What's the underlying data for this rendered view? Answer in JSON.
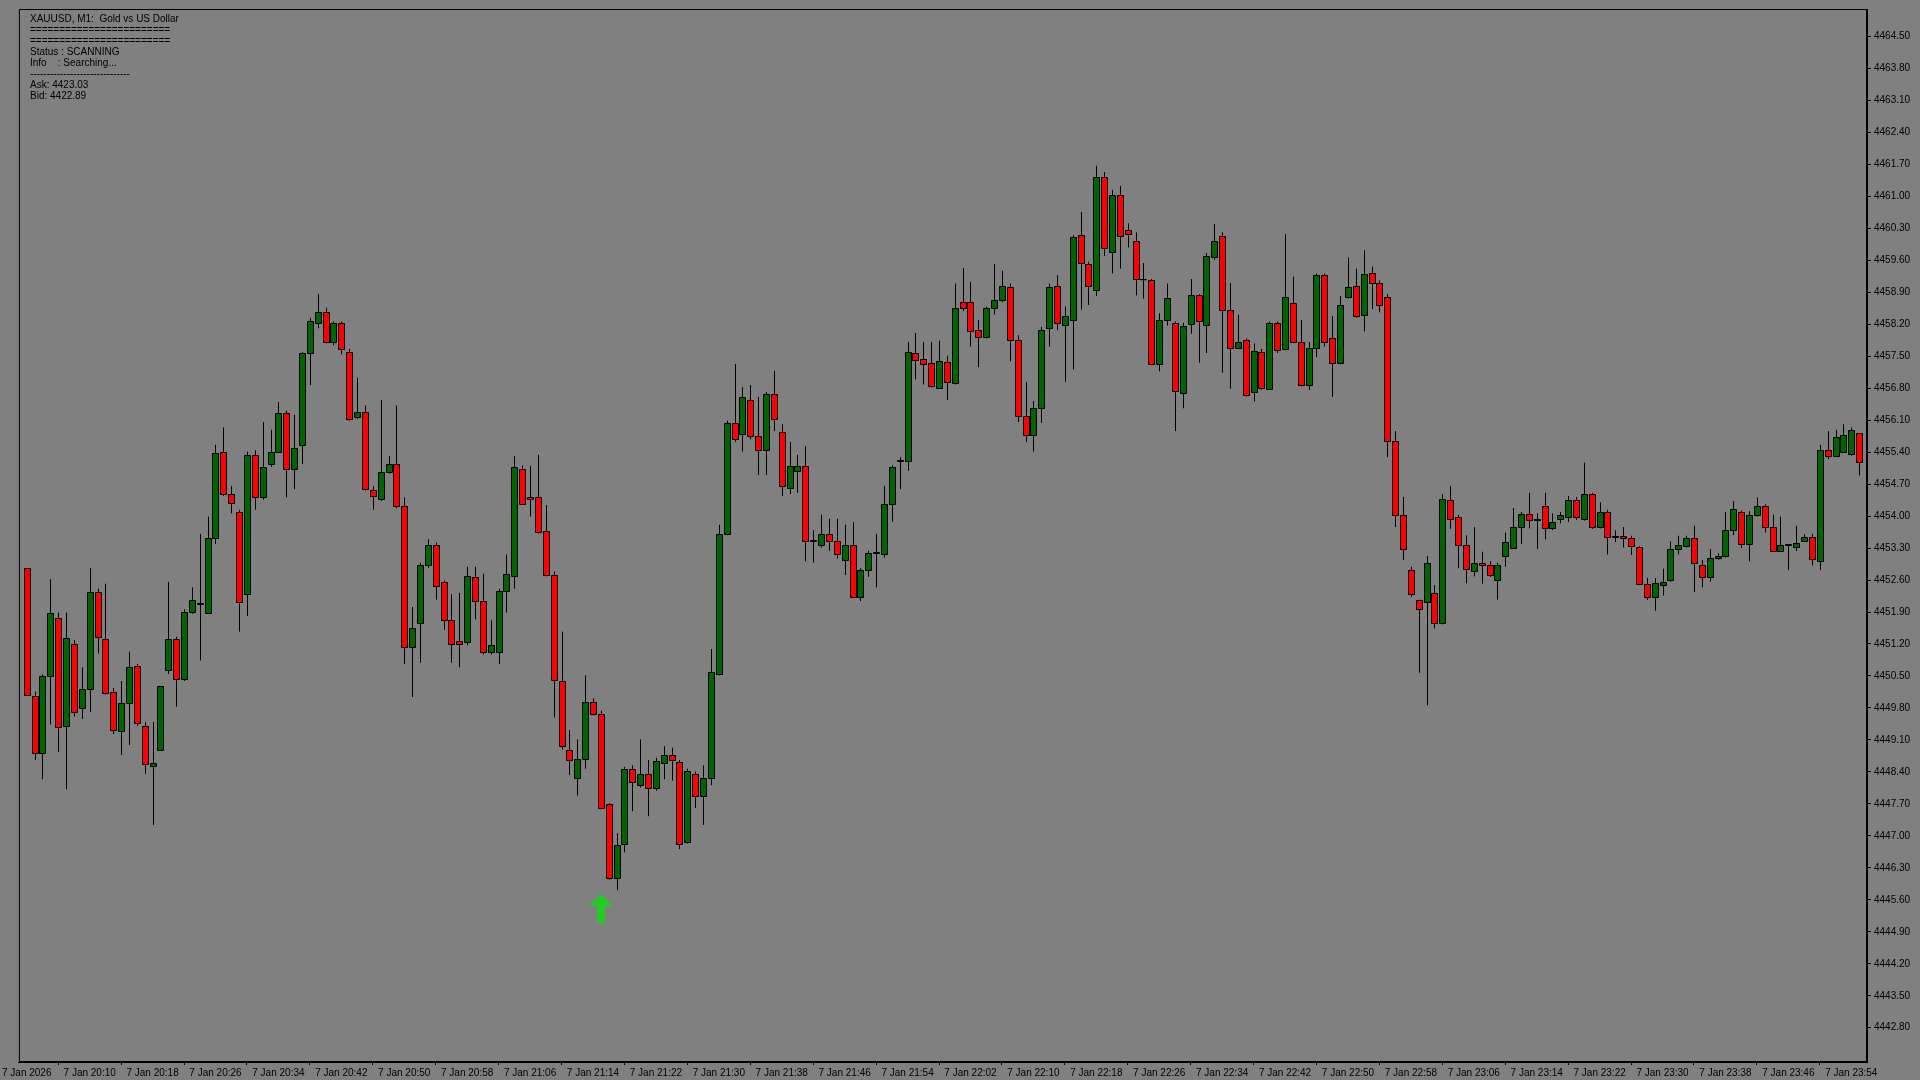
{
  "chart_data": {
    "type": "candlestick",
    "title": "XAUUSD, M1:  Gold vs US Dollar",
    "annotations": [
      "========================",
      "========================",
      "Status : SCANNING",
      "Info    : Searching...",
      "------------------------------",
      "Ask: 4423.03",
      "Bid: 4422.89"
    ],
    "x": [
      "2026-01-07T20:02",
      "2026-01-07T20:03",
      "2026-01-07T20:04",
      "2026-01-07T20:05",
      "2026-01-07T20:06",
      "2026-01-07T20:07",
      "2026-01-07T20:08",
      "2026-01-07T20:09",
      "2026-01-07T20:10",
      "2026-01-07T20:11",
      "2026-01-07T20:12",
      "2026-01-07T20:13",
      "2026-01-07T20:14",
      "2026-01-07T20:15",
      "2026-01-07T20:16",
      "2026-01-07T20:17",
      "2026-01-07T20:18",
      "2026-01-07T20:19",
      "2026-01-07T20:20",
      "2026-01-07T20:21",
      "2026-01-07T20:22",
      "2026-01-07T20:23",
      "2026-01-07T20:24",
      "2026-01-07T20:25",
      "2026-01-07T20:26",
      "2026-01-07T20:27",
      "2026-01-07T20:28",
      "2026-01-07T20:29",
      "2026-01-07T20:30",
      "2026-01-07T20:31",
      "2026-01-07T20:32",
      "2026-01-07T20:33",
      "2026-01-07T20:34",
      "2026-01-07T20:35",
      "2026-01-07T20:36",
      "2026-01-07T20:37",
      "2026-01-07T20:38",
      "2026-01-07T20:39",
      "2026-01-07T20:40",
      "2026-01-07T20:41",
      "2026-01-07T20:42",
      "2026-01-07T20:43",
      "2026-01-07T20:44",
      "2026-01-07T20:45",
      "2026-01-07T20:46",
      "2026-01-07T20:47",
      "2026-01-07T20:48",
      "2026-01-07T20:49",
      "2026-01-07T20:50",
      "2026-01-07T20:51",
      "2026-01-07T20:52",
      "2026-01-07T20:53",
      "2026-01-07T20:54",
      "2026-01-07T20:55",
      "2026-01-07T20:56",
      "2026-01-07T20:57",
      "2026-01-07T20:58",
      "2026-01-07T20:59",
      "2026-01-07T21:00",
      "2026-01-07T21:01",
      "2026-01-07T21:02",
      "2026-01-07T21:03",
      "2026-01-07T21:04",
      "2026-01-07T21:05",
      "2026-01-07T21:06",
      "2026-01-07T21:07",
      "2026-01-07T21:08",
      "2026-01-07T21:09",
      "2026-01-07T21:10",
      "2026-01-07T21:11",
      "2026-01-07T21:12",
      "2026-01-07T21:13",
      "2026-01-07T21:14",
      "2026-01-07T21:15",
      "2026-01-07T21:16",
      "2026-01-07T21:17",
      "2026-01-07T21:18",
      "2026-01-07T21:19",
      "2026-01-07T21:20",
      "2026-01-07T21:21",
      "2026-01-07T21:22",
      "2026-01-07T21:23",
      "2026-01-07T21:24",
      "2026-01-07T21:25",
      "2026-01-07T21:26",
      "2026-01-07T21:27",
      "2026-01-07T21:28",
      "2026-01-07T21:29",
      "2026-01-07T21:30",
      "2026-01-07T21:31",
      "2026-01-07T21:32",
      "2026-01-07T21:33",
      "2026-01-07T21:34",
      "2026-01-07T21:35",
      "2026-01-07T21:36",
      "2026-01-07T21:37",
      "2026-01-07T21:38",
      "2026-01-07T21:39",
      "2026-01-07T21:40",
      "2026-01-07T21:41",
      "2026-01-07T21:42",
      "2026-01-07T21:43",
      "2026-01-07T21:44",
      "2026-01-07T21:45",
      "2026-01-07T21:46",
      "2026-01-07T21:47",
      "2026-01-07T21:48",
      "2026-01-07T21:49",
      "2026-01-07T21:50",
      "2026-01-07T21:51",
      "2026-01-07T21:52",
      "2026-01-07T21:53",
      "2026-01-07T21:54",
      "2026-01-07T21:55",
      "2026-01-07T21:56",
      "2026-01-07T21:57",
      "2026-01-07T21:58",
      "2026-01-07T21:59",
      "2026-01-07T22:00",
      "2026-01-07T22:01",
      "2026-01-07T22:02",
      "2026-01-07T22:03",
      "2026-01-07T22:04",
      "2026-01-07T22:05",
      "2026-01-07T22:06",
      "2026-01-07T22:07",
      "2026-01-07T22:08",
      "2026-01-07T22:09",
      "2026-01-07T22:10",
      "2026-01-07T22:11",
      "2026-01-07T22:12",
      "2026-01-07T22:13",
      "2026-01-07T22:14",
      "2026-01-07T22:15",
      "2026-01-07T22:16",
      "2026-01-07T22:17",
      "2026-01-07T22:18",
      "2026-01-07T22:19",
      "2026-01-07T22:20",
      "2026-01-07T22:21",
      "2026-01-07T22:22",
      "2026-01-07T22:23",
      "2026-01-07T22:24",
      "2026-01-07T22:25",
      "2026-01-07T22:26",
      "2026-01-07T22:27",
      "2026-01-07T22:28",
      "2026-01-07T22:29",
      "2026-01-07T22:30",
      "2026-01-07T22:31",
      "2026-01-07T22:32",
      "2026-01-07T22:33",
      "2026-01-07T22:34",
      "2026-01-07T22:35",
      "2026-01-07T22:36",
      "2026-01-07T22:37",
      "2026-01-07T22:38",
      "2026-01-07T22:39",
      "2026-01-07T22:40",
      "2026-01-07T22:41",
      "2026-01-07T22:42",
      "2026-01-07T22:43",
      "2026-01-07T22:44",
      "2026-01-07T22:45",
      "2026-01-07T22:46",
      "2026-01-07T22:47",
      "2026-01-07T22:48",
      "2026-01-07T22:49",
      "2026-01-07T22:50",
      "2026-01-07T22:51",
      "2026-01-07T22:52",
      "2026-01-07T22:53",
      "2026-01-07T22:54",
      "2026-01-07T22:55",
      "2026-01-07T22:56",
      "2026-01-07T22:57",
      "2026-01-07T22:58",
      "2026-01-07T22:59",
      "2026-01-07T23:00",
      "2026-01-07T23:01",
      "2026-01-07T23:02",
      "2026-01-07T23:03",
      "2026-01-07T23:04",
      "2026-01-07T23:05",
      "2026-01-07T23:06",
      "2026-01-07T23:07",
      "2026-01-07T23:08",
      "2026-01-07T23:09",
      "2026-01-07T23:10",
      "2026-01-07T23:11",
      "2026-01-07T23:12",
      "2026-01-07T23:13",
      "2026-01-07T23:14",
      "2026-01-07T23:15",
      "2026-01-07T23:16",
      "2026-01-07T23:17",
      "2026-01-07T23:18",
      "2026-01-07T23:19",
      "2026-01-07T23:20",
      "2026-01-07T23:21",
      "2026-01-07T23:22",
      "2026-01-07T23:23",
      "2026-01-07T23:24",
      "2026-01-07T23:25",
      "2026-01-07T23:26",
      "2026-01-07T23:27",
      "2026-01-07T23:28",
      "2026-01-07T23:29",
      "2026-01-07T23:30",
      "2026-01-07T23:31",
      "2026-01-07T23:32",
      "2026-01-07T23:33",
      "2026-01-07T23:34",
      "2026-01-07T23:35",
      "2026-01-07T23:36",
      "2026-01-07T23:37",
      "2026-01-07T23:38",
      "2026-01-07T23:39",
      "2026-01-07T23:40",
      "2026-01-07T23:41",
      "2026-01-07T23:42",
      "2026-01-07T23:43",
      "2026-01-07T23:44",
      "2026-01-07T23:45",
      "2026-01-07T23:46",
      "2026-01-07T23:47",
      "2026-01-07T23:48",
      "2026-01-07T23:49",
      "2026-01-07T23:50",
      "2026-01-07T23:51",
      "2026-01-07T23:52",
      "2026-01-07T23:53",
      "2026-01-07T23:54",
      "2026-01-07T23:55"
    ],
    "ohlc": [
      [
        4452.86,
        4452.86,
        4450.09,
        4450.09
      ],
      [
        4450.06,
        4450.16,
        4448.66,
        4448.81
      ],
      [
        4448.81,
        4450.54,
        4448.24,
        4450.49
      ],
      [
        4450.49,
        4452.62,
        4449.44,
        4451.87
      ],
      [
        4451.78,
        4451.89,
        4448.84,
        4449.38
      ],
      [
        4449.41,
        4451.89,
        4448.02,
        4451.33
      ],
      [
        4451.21,
        4451.29,
        4449.61,
        4449.71
      ],
      [
        4449.79,
        4450.69,
        4449.56,
        4450.21
      ],
      [
        4450.21,
        4452.86,
        4449.71,
        4452.34
      ],
      [
        4452.34,
        4452.41,
        4450.99,
        4451.36
      ],
      [
        4451.3,
        4452.52,
        4450.09,
        4450.13
      ],
      [
        4450.16,
        4450.24,
        4449.23,
        4449.31
      ],
      [
        4449.29,
        4450.39,
        4448.77,
        4449.91
      ],
      [
        4449.91,
        4451.03,
        4448.99,
        4450.69
      ],
      [
        4450.72,
        4450.76,
        4449.41,
        4449.47
      ],
      [
        4449.4,
        4449.49,
        4448.36,
        4448.57
      ],
      [
        4448.54,
        4449.49,
        4447.24,
        4448.6
      ],
      [
        4448.89,
        4450.27,
        4448.89,
        4450.27
      ],
      [
        4450.63,
        4452.56,
        4450.54,
        4451.3
      ],
      [
        4451.3,
        4451.36,
        4449.83,
        4450.43
      ],
      [
        4450.43,
        4451.96,
        4450.39,
        4451.9
      ],
      [
        4451.9,
        4452.44,
        4451.86,
        4452.17
      ],
      [
        4452.08,
        4453.61,
        4450.84,
        4452.1
      ],
      [
        4451.87,
        4453.99,
        4451.86,
        4453.52
      ],
      [
        4453.52,
        4455.56,
        4453.39,
        4455.38
      ],
      [
        4455.41,
        4455.94,
        4454.44,
        4454.48
      ],
      [
        4454.48,
        4454.66,
        4454.06,
        4454.29
      ],
      [
        4454.09,
        4454.14,
        4451.47,
        4452.11
      ],
      [
        4452.29,
        4455.41,
        4451.81,
        4455.34
      ],
      [
        4455.34,
        4455.44,
        4454.14,
        4454.42
      ],
      [
        4454.42,
        4456.06,
        4454.36,
        4455.08
      ],
      [
        4455.14,
        4455.89,
        4455.08,
        4455.41
      ],
      [
        4455.41,
        4456.49,
        4455.38,
        4456.25
      ],
      [
        4456.25,
        4456.31,
        4454.41,
        4455.02
      ],
      [
        4455.02,
        4456.22,
        4454.59,
        4455.5
      ],
      [
        4455.56,
        4457.59,
        4455.14,
        4457.56
      ],
      [
        4457.56,
        4458.34,
        4456.87,
        4458.26
      ],
      [
        4458.23,
        4458.86,
        4458.11,
        4458.46
      ],
      [
        4458.46,
        4458.56,
        4457.78,
        4457.81
      ],
      [
        4457.81,
        4458.26,
        4457.74,
        4458.23
      ],
      [
        4458.23,
        4458.26,
        4457.54,
        4457.66
      ],
      [
        4457.59,
        4457.66,
        4456.09,
        4456.12
      ],
      [
        4456.16,
        4457.03,
        4456.12,
        4456.28
      ],
      [
        4456.27,
        4456.42,
        4454.56,
        4454.59
      ],
      [
        4454.57,
        4454.66,
        4454.14,
        4454.45
      ],
      [
        4454.38,
        4456.54,
        4454.33,
        4454.96
      ],
      [
        4454.96,
        4455.31,
        4454.93,
        4455.14
      ],
      [
        4455.14,
        4456.42,
        4454.17,
        4454.21
      ],
      [
        4454.21,
        4454.41,
        4450.76,
        4451.14
      ],
      [
        4451.14,
        4452.01,
        4450.04,
        4451.56
      ],
      [
        4451.66,
        4452.98,
        4450.79,
        4452.92
      ],
      [
        4452.92,
        4453.49,
        4452.86,
        4453.36
      ],
      [
        4453.36,
        4453.42,
        4452.17,
        4452.47
      ],
      [
        4452.55,
        4452.59,
        4451.51,
        4451.72
      ],
      [
        4451.72,
        4452.29,
        4450.79,
        4451.2
      ],
      [
        4451.27,
        4452.32,
        4450.69,
        4451.2
      ],
      [
        4451.24,
        4452.89,
        4451.17,
        4452.68
      ],
      [
        4452.67,
        4452.89,
        4451.74,
        4452.14
      ],
      [
        4452.14,
        4452.74,
        4450.97,
        4451.02
      ],
      [
        4451.02,
        4451.72,
        4450.97,
        4451.18
      ],
      [
        4451.02,
        4452.41,
        4450.76,
        4452.37
      ],
      [
        4452.37,
        4453.16,
        4451.89,
        4452.74
      ],
      [
        4452.68,
        4455.31,
        4452.41,
        4455.07
      ],
      [
        4455.04,
        4455.11,
        4454.24,
        4454.27
      ],
      [
        4454.42,
        4455.1,
        4453.99,
        4454.38
      ],
      [
        4454.41,
        4455.34,
        4453.61,
        4453.66
      ],
      [
        4453.67,
        4454.24,
        4452.68,
        4452.71
      ],
      [
        4452.71,
        4452.79,
        4449.59,
        4450.42
      ],
      [
        4450.39,
        4451.47,
        4448.89,
        4448.96
      ],
      [
        4448.89,
        4449.31,
        4448.33,
        4448.66
      ],
      [
        4448.27,
        4449.11,
        4447.88,
        4448.69
      ],
      [
        4448.69,
        4450.51,
        4448.47,
        4449.94
      ],
      [
        4449.94,
        4450.01,
        4449.64,
        4449.67
      ],
      [
        4449.67,
        4449.74,
        4447.58,
        4447.61
      ],
      [
        4447.69,
        4447.72,
        4446.04,
        4446.08
      ],
      [
        4446.08,
        4447.06,
        4445.81,
        4446.79
      ],
      [
        4446.83,
        4448.51,
        4446.64,
        4448.47
      ],
      [
        4448.47,
        4448.54,
        4447.54,
        4448.17
      ],
      [
        4448.11,
        4449.11,
        4448.06,
        4448.36
      ],
      [
        4448.36,
        4448.66,
        4447.43,
        4448.05
      ],
      [
        4448.05,
        4448.71,
        4447.99,
        4448.63
      ],
      [
        4448.59,
        4448.96,
        4448.24,
        4448.77
      ],
      [
        4448.77,
        4448.93,
        4448.21,
        4448.65
      ],
      [
        4448.62,
        4448.66,
        4446.71,
        4446.83
      ],
      [
        4446.86,
        4448.47,
        4446.83,
        4448.41
      ],
      [
        4448.36,
        4448.41,
        4447.61,
        4447.88
      ],
      [
        4447.88,
        4448.54,
        4447.24,
        4448.26
      ],
      [
        4448.26,
        4451.09,
        4448.11,
        4450.58
      ],
      [
        4450.54,
        4453.81,
        4450.51,
        4453.61
      ],
      [
        4453.61,
        4456.09,
        4453.58,
        4456.04
      ],
      [
        4456.04,
        4457.33,
        4455.62,
        4455.68
      ],
      [
        4455.8,
        4456.82,
        4455.41,
        4456.61
      ],
      [
        4456.55,
        4456.87,
        4455.68,
        4455.76
      ],
      [
        4455.76,
        4456.61,
        4454.9,
        4455.44
      ],
      [
        4455.44,
        4456.72,
        4454.9,
        4456.67
      ],
      [
        4456.67,
        4457.18,
        4455.86,
        4456.12
      ],
      [
        4455.85,
        4456.01,
        4454.44,
        4454.66
      ],
      [
        4454.62,
        4455.62,
        4454.48,
        4455.1
      ],
      [
        4454.99,
        4455.34,
        4454.51,
        4455.1
      ],
      [
        4455.1,
        4455.53,
        4453.01,
        4453.46
      ],
      [
        4453.46,
        4453.69,
        4452.98,
        4453.47
      ],
      [
        4453.36,
        4454.03,
        4453.31,
        4453.61
      ],
      [
        4453.61,
        4453.94,
        4453.24,
        4453.46
      ],
      [
        4453.46,
        4453.94,
        4453.07,
        4453.16
      ],
      [
        4453.04,
        4453.81,
        4452.71,
        4453.36
      ],
      [
        4453.36,
        4453.87,
        4452.23,
        4452.23
      ],
      [
        4452.23,
        4452.86,
        4452.14,
        4452.83
      ],
      [
        4452.83,
        4453.24,
        4452.67,
        4453.19
      ],
      [
        4453.19,
        4453.61,
        4452.44,
        4453.22
      ],
      [
        4453.16,
        4454.66,
        4453.09,
        4454.26
      ],
      [
        4454.26,
        4455.11,
        4453.88,
        4455.08
      ],
      [
        4455.21,
        4455.29,
        4454.59,
        4455.23
      ],
      [
        4455.2,
        4457.81,
        4454.99,
        4457.59
      ],
      [
        4457.56,
        4458.01,
        4456.99,
        4457.42
      ],
      [
        4457.44,
        4457.81,
        4456.88,
        4457.33
      ],
      [
        4457.35,
        4457.81,
        4456.81,
        4456.84
      ],
      [
        4456.81,
        4457.84,
        4456.79,
        4457.39
      ],
      [
        4457.38,
        4457.51,
        4456.54,
        4456.94
      ],
      [
        4456.91,
        4459.09,
        4456.88,
        4458.56
      ],
      [
        4458.68,
        4459.43,
        4458.49,
        4458.55
      ],
      [
        4458.68,
        4459.13,
        4457.71,
        4458.05
      ],
      [
        4458.07,
        4458.29,
        4457.26,
        4457.92
      ],
      [
        4457.92,
        4458.59,
        4457.89,
        4458.55
      ],
      [
        4458.55,
        4459.52,
        4458.41,
        4458.73
      ],
      [
        4458.73,
        4459.37,
        4458.68,
        4459.04
      ],
      [
        4459.01,
        4459.09,
        4457.39,
        4457.86
      ],
      [
        4457.86,
        4457.96,
        4456.06,
        4456.19
      ],
      [
        4456.19,
        4456.94,
        4455.62,
        4455.77
      ],
      [
        4455.77,
        4456.52,
        4455.41,
        4456.37
      ],
      [
        4456.37,
        4458.14,
        4456.04,
        4458.08
      ],
      [
        4458.11,
        4459.09,
        4457.71,
        4459.01
      ],
      [
        4459.04,
        4459.27,
        4458.07,
        4458.23
      ],
      [
        4458.19,
        4458.59,
        4456.94,
        4458.38
      ],
      [
        4458.29,
        4460.15,
        4457.21,
        4460.12
      ],
      [
        4460.15,
        4460.66,
        4458.52,
        4459.54
      ],
      [
        4459.51,
        4459.57,
        4458.62,
        4459.03
      ],
      [
        4458.95,
        4461.67,
        4458.82,
        4461.43
      ],
      [
        4461.43,
        4461.53,
        4459.69,
        4459.87
      ],
      [
        4459.79,
        4461.14,
        4459.31,
        4461.02
      ],
      [
        4461.02,
        4461.23,
        4459.42,
        4460.14
      ],
      [
        4460.27,
        4460.41,
        4459.88,
        4460.18
      ],
      [
        4460.03,
        4460.21,
        4458.83,
        4459.18
      ],
      [
        4459.18,
        4459.54,
        4458.76,
        4459.18
      ],
      [
        4459.16,
        4459.19,
        4457.3,
        4457.33
      ],
      [
        4457.33,
        4458.44,
        4457.17,
        4458.29
      ],
      [
        4458.29,
        4459.09,
        4458.17,
        4458.77
      ],
      [
        4458.23,
        4458.26,
        4455.86,
        4456.73
      ],
      [
        4456.7,
        4458.23,
        4456.36,
        4458.17
      ],
      [
        4458.2,
        4459.19,
        4457.99,
        4458.83
      ],
      [
        4458.83,
        4458.86,
        4457.36,
        4458.26
      ],
      [
        4458.19,
        4459.76,
        4457.57,
        4459.7
      ],
      [
        4459.67,
        4460.39,
        4459.61,
        4460.03
      ],
      [
        4460.14,
        4460.21,
        4457.14,
        4458.52
      ],
      [
        4458.52,
        4459.1,
        4456.79,
        4457.69
      ],
      [
        4457.69,
        4458.41,
        4457.66,
        4457.8
      ],
      [
        4457.86,
        4457.89,
        4456.61,
        4456.64
      ],
      [
        4456.72,
        4457.78,
        4456.51,
        4457.62
      ],
      [
        4457.6,
        4457.66,
        4456.76,
        4456.81
      ],
      [
        4456.79,
        4458.26,
        4456.76,
        4458.22
      ],
      [
        4458.22,
        4458.26,
        4457.57,
        4457.63
      ],
      [
        4457.66,
        4460.17,
        4457.63,
        4458.79
      ],
      [
        4458.67,
        4459.24,
        4457.78,
        4457.81
      ],
      [
        4457.8,
        4458.29,
        4456.84,
        4456.88
      ],
      [
        4456.88,
        4457.81,
        4456.76,
        4457.69
      ],
      [
        4457.69,
        4459.31,
        4457.48,
        4459.28
      ],
      [
        4459.28,
        4459.31,
        4457.71,
        4457.81
      ],
      [
        4457.9,
        4458.38,
        4456.61,
        4457.36
      ],
      [
        4457.36,
        4458.82,
        4457.32,
        4458.61
      ],
      [
        4458.8,
        4459.66,
        4458.76,
        4459.01
      ],
      [
        4459.04,
        4459.42,
        4458.34,
        4458.38
      ],
      [
        4458.41,
        4459.82,
        4458.04,
        4459.3
      ],
      [
        4459.33,
        4459.46,
        4458.53,
        4459.1
      ],
      [
        4459.1,
        4459.16,
        4458.46,
        4458.62
      ],
      [
        4458.8,
        4458.86,
        4455.29,
        4455.65
      ],
      [
        4455.65,
        4455.86,
        4453.76,
        4454.02
      ],
      [
        4454.03,
        4454.42,
        4453.04,
        4453.28
      ],
      [
        4452.83,
        4452.89,
        4452.23,
        4452.29
      ],
      [
        4452.17,
        4452.17,
        4450.57,
        4451.96
      ],
      [
        4452.11,
        4453.13,
        4449.86,
        4452.98
      ],
      [
        4452.31,
        4452.49,
        4451.54,
        4451.66
      ],
      [
        4451.66,
        4454.48,
        4451.63,
        4454.38
      ],
      [
        4454.36,
        4454.66,
        4453.72,
        4453.94
      ],
      [
        4453.97,
        4454.03,
        4452.86,
        4453.37
      ],
      [
        4453.37,
        4453.58,
        4452.53,
        4452.85
      ],
      [
        4452.79,
        4453.76,
        4452.68,
        4452.97
      ],
      [
        4452.97,
        4453.22,
        4452.52,
        4452.94
      ],
      [
        4452.94,
        4453.01,
        4452.67,
        4452.71
      ],
      [
        4452.61,
        4452.98,
        4452.17,
        4452.94
      ],
      [
        4453.12,
        4453.64,
        4452.89,
        4453.43
      ],
      [
        4453.31,
        4454.18,
        4453.28,
        4453.76
      ],
      [
        4453.76,
        4454.09,
        4453.39,
        4454.05
      ],
      [
        4454.05,
        4454.51,
        4453.73,
        4453.91
      ],
      [
        4453.91,
        4454.06,
        4453.28,
        4453.93
      ],
      [
        4454.21,
        4454.51,
        4453.49,
        4453.73
      ],
      [
        4453.73,
        4454.06,
        4453.69,
        4453.87
      ],
      [
        4453.93,
        4454.09,
        4453.84,
        4454.03
      ],
      [
        4453.99,
        4454.44,
        4453.87,
        4454.35
      ],
      [
        4454.35,
        4454.42,
        4453.91,
        4453.97
      ],
      [
        4453.94,
        4455.17,
        4453.9,
        4454.48
      ],
      [
        4454.48,
        4454.51,
        4453.72,
        4453.76
      ],
      [
        4453.76,
        4454.3,
        4453.73,
        4454.08
      ],
      [
        4454.08,
        4454.14,
        4453.16,
        4453.55
      ],
      [
        4453.57,
        4453.69,
        4453.43,
        4453.54
      ],
      [
        4453.57,
        4453.76,
        4453.31,
        4453.51
      ],
      [
        4453.52,
        4453.57,
        4453.15,
        4453.34
      ],
      [
        4453.33,
        4453.34,
        4452.49,
        4452.52
      ],
      [
        4452.52,
        4452.65,
        4452.16,
        4452.22
      ],
      [
        4452.22,
        4452.64,
        4451.93,
        4452.53
      ],
      [
        4452.5,
        4452.85,
        4452.26,
        4452.56
      ],
      [
        4452.61,
        4453.45,
        4452.56,
        4453.27
      ],
      [
        4453.27,
        4453.57,
        4453.16,
        4453.36
      ],
      [
        4453.34,
        4453.57,
        4453.31,
        4453.52
      ],
      [
        4453.52,
        4453.79,
        4452.34,
        4452.97
      ],
      [
        4452.94,
        4453.04,
        4452.44,
        4452.67
      ],
      [
        4452.67,
        4453.28,
        4452.56,
        4453.09
      ],
      [
        4453.09,
        4453.19,
        4453.04,
        4453.12
      ],
      [
        4453.12,
        4454.09,
        4453.09,
        4453.69
      ],
      [
        4453.69,
        4454.33,
        4453.58,
        4454.15
      ],
      [
        4454.09,
        4454.12,
        4453.3,
        4453.39
      ],
      [
        4453.39,
        4454.11,
        4453.01,
        4454.03
      ],
      [
        4454.03,
        4454.41,
        4453.99,
        4454.21
      ],
      [
        4454.23,
        4454.26,
        4453.64,
        4453.76
      ],
      [
        4453.76,
        4454.03,
        4453.21,
        4453.24
      ],
      [
        4453.24,
        4453.99,
        4453.21,
        4453.36
      ],
      [
        4453.39,
        4453.39,
        4452.82,
        4453.36
      ],
      [
        4453.33,
        4453.79,
        4453.24,
        4453.42
      ],
      [
        4453.46,
        4453.6,
        4453.43,
        4453.55
      ],
      [
        4453.55,
        4453.61,
        4452.92,
        4453.07
      ],
      [
        4453.01,
        4455.56,
        4452.82,
        4455.44
      ],
      [
        4455.44,
        4455.86,
        4455.25,
        4455.32
      ],
      [
        4455.32,
        4455.89,
        4455.29,
        4455.74
      ],
      [
        4455.41,
        4456.01,
        4455.38,
        4455.77
      ],
      [
        4455.35,
        4455.94,
        4455.32,
        4455.89
      ],
      [
        4455.82,
        4455.82,
        4454.89,
        4455.19
      ]
    ],
    "colors": [
      "#ff0000",
      "#ff0000",
      "#006400",
      "#006400",
      "#ff0000",
      "#006400",
      "#ff0000",
      "#006400",
      "#006400",
      "#ff0000",
      "#ff0000",
      "#ff0000",
      "#006400",
      "#006400",
      "#ff0000",
      "#ff0000",
      "#006400",
      "#006400",
      "#006400",
      "#ff0000",
      "#006400",
      "#006400",
      "#006400",
      "#006400",
      "#006400",
      "#ff0000",
      "#ff0000",
      "#ff0000",
      "#006400",
      "#ff0000",
      "#006400",
      "#006400",
      "#006400",
      "#ff0000",
      "#006400",
      "#006400",
      "#006400",
      "#006400",
      "#ff0000",
      "#006400",
      "#ff0000",
      "#ff0000",
      "#006400",
      "#ff0000",
      "#ff0000",
      "#006400",
      "#006400",
      "#ff0000",
      "#ff0000",
      "#006400",
      "#006400",
      "#006400",
      "#ff0000",
      "#ff0000",
      "#ff0000",
      "#ff0000",
      "#006400",
      "#ff0000",
      "#ff0000",
      "#006400",
      "#006400",
      "#006400",
      "#006400",
      "#ff0000",
      "#ff0000",
      "#ff0000",
      "#ff0000",
      "#ff0000",
      "#ff0000",
      "#ff0000",
      "#006400",
      "#006400",
      "#ff0000",
      "#ff0000",
      "#ff0000",
      "#006400",
      "#006400",
      "#ff0000",
      "#006400",
      "#ff0000",
      "#006400",
      "#006400",
      "#ff0000",
      "#ff0000",
      "#006400",
      "#ff0000",
      "#006400",
      "#006400",
      "#006400",
      "#006400",
      "#ff0000",
      "#006400",
      "#ff0000",
      "#ff0000",
      "#006400",
      "#ff0000",
      "#ff0000",
      "#006400",
      "#006400",
      "#ff0000",
      "#006400",
      "#006400",
      "#ff0000",
      "#ff0000",
      "#006400",
      "#ff0000",
      "#006400",
      "#006400",
      "#006400",
      "#006400",
      "#006400",
      "#006400",
      "#006400",
      "#ff0000",
      "#ff0000",
      "#ff0000",
      "#006400",
      "#ff0000",
      "#006400",
      "#ff0000",
      "#ff0000",
      "#ff0000",
      "#006400",
      "#006400",
      "#006400",
      "#ff0000",
      "#ff0000",
      "#ff0000",
      "#006400",
      "#006400",
      "#006400",
      "#ff0000",
      "#006400",
      "#006400",
      "#ff0000",
      "#ff0000",
      "#006400",
      "#ff0000",
      "#006400",
      "#ff0000",
      "#ff0000",
      "#ff0000",
      "#006400",
      "#ff0000",
      "#006400",
      "#006400",
      "#ff0000",
      "#006400",
      "#006400",
      "#ff0000",
      "#006400",
      "#006400",
      "#ff0000",
      "#ff0000",
      "#006400",
      "#ff0000",
      "#006400",
      "#ff0000",
      "#006400",
      "#ff0000",
      "#006400",
      "#ff0000",
      "#ff0000",
      "#006400",
      "#006400",
      "#ff0000",
      "#ff0000",
      "#006400",
      "#006400",
      "#ff0000",
      "#006400",
      "#ff0000",
      "#ff0000",
      "#ff0000",
      "#ff0000",
      "#ff0000",
      "#ff0000",
      "#ff0000",
      "#006400",
      "#ff0000",
      "#006400",
      "#ff0000",
      "#ff0000",
      "#ff0000",
      "#006400",
      "#ff0000",
      "#ff0000",
      "#006400",
      "#006400",
      "#006400",
      "#006400",
      "#ff0000",
      "#006400",
      "#ff0000",
      "#006400",
      "#006400",
      "#006400",
      "#ff0000",
      "#006400",
      "#ff0000",
      "#006400",
      "#ff0000",
      "#ff0000",
      "#ff0000",
      "#ff0000",
      "#ff0000",
      "#ff0000",
      "#006400",
      "#006400",
      "#006400",
      "#006400",
      "#006400",
      "#ff0000",
      "#ff0000",
      "#006400",
      "#006400",
      "#006400",
      "#006400",
      "#ff0000",
      "#006400",
      "#006400",
      "#ff0000",
      "#ff0000",
      "#006400",
      "#ff0000",
      "#006400",
      "#006400",
      "#ff0000",
      "#006400",
      "#ff0000",
      "#006400",
      "#006400",
      "#006400",
      "#ff0000"
    ],
    "xlim": [
      "2026-01-07T20:01",
      "2026-01-07T23:56"
    ],
    "xticks": [
      {
        "value": "2026-01-07T20:02",
        "label": "7 Jan 2026"
      },
      {
        "value": "2026-01-07T20:10",
        "label": "7 Jan 20:10"
      },
      {
        "value": "2026-01-07T20:18",
        "label": "7 Jan 20:18"
      },
      {
        "value": "2026-01-07T20:26",
        "label": "7 Jan 20:26"
      },
      {
        "value": "2026-01-07T20:34",
        "label": "7 Jan 20:34"
      },
      {
        "value": "2026-01-07T20:42",
        "label": "7 Jan 20:42"
      },
      {
        "value": "2026-01-07T20:50",
        "label": "7 Jan 20:50"
      },
      {
        "value": "2026-01-07T20:58",
        "label": "7 Jan 20:58"
      },
      {
        "value": "2026-01-07T21:06",
        "label": "7 Jan 21:06"
      },
      {
        "value": "2026-01-07T21:14",
        "label": "7 Jan 21:14"
      },
      {
        "value": "2026-01-07T21:22",
        "label": "7 Jan 21:22"
      },
      {
        "value": "2026-01-07T21:30",
        "label": "7 Jan 21:30"
      },
      {
        "value": "2026-01-07T21:38",
        "label": "7 Jan 21:38"
      },
      {
        "value": "2026-01-07T21:46",
        "label": "7 Jan 21:46"
      },
      {
        "value": "2026-01-07T21:54",
        "label": "7 Jan 21:54"
      },
      {
        "value": "2026-01-07T22:02",
        "label": "7 Jan 22:02"
      },
      {
        "value": "2026-01-07T22:10",
        "label": "7 Jan 22:10"
      },
      {
        "value": "2026-01-07T22:18",
        "label": "7 Jan 22:18"
      },
      {
        "value": "2026-01-07T22:26",
        "label": "7 Jan 22:26"
      },
      {
        "value": "2026-01-07T22:34",
        "label": "7 Jan 22:34"
      },
      {
        "value": "2026-01-07T22:42",
        "label": "7 Jan 22:42"
      },
      {
        "value": "2026-01-07T22:50",
        "label": "7 Jan 22:50"
      },
      {
        "value": "2026-01-07T22:58",
        "label": "7 Jan 22:58"
      },
      {
        "value": "2026-01-07T23:06",
        "label": "7 Jan 23:06"
      },
      {
        "value": "2026-01-07T23:14",
        "label": "7 Jan 23:14"
      },
      {
        "value": "2026-01-07T23:22",
        "label": "7 Jan 23:22"
      },
      {
        "value": "2026-01-07T23:30",
        "label": "7 Jan 23:30"
      },
      {
        "value": "2026-01-07T23:38",
        "label": "7 Jan 23:38"
      },
      {
        "value": "2026-01-07T23:46",
        "label": "7 Jan 23:46"
      },
      {
        "value": "2026-01-07T23:54",
        "label": "7 Jan 23:54"
      }
    ],
    "ylim": [
      4442.05,
      4465.1
    ],
    "yticks": [
      {
        "value": 4442.8,
        "label": "4442.80"
      },
      {
        "value": 4443.5,
        "label": "4443.50"
      },
      {
        "value": 4444.2,
        "label": "4444.20"
      },
      {
        "value": 4444.9,
        "label": "4444.90"
      },
      {
        "value": 4445.6,
        "label": "4445.60"
      },
      {
        "value": 4446.3,
        "label": "4446.30"
      },
      {
        "value": 4447,
        "label": "4447.00"
      },
      {
        "value": 4447.7,
        "label": "4447.70"
      },
      {
        "value": 4448.4,
        "label": "4448.40"
      },
      {
        "value": 4449.1,
        "label": "4449.10"
      },
      {
        "value": 4449.8,
        "label": "4449.80"
      },
      {
        "value": 4450.5,
        "label": "4450.50"
      },
      {
        "value": 4451.2,
        "label": "4451.20"
      },
      {
        "value": 4451.9,
        "label": "4451.90"
      },
      {
        "value": 4452.6,
        "label": "4452.60"
      },
      {
        "value": 4453.3,
        "label": "4453.30"
      },
      {
        "value": 4454,
        "label": "4454.00"
      },
      {
        "value": 4454.7,
        "label": "4454.70"
      },
      {
        "value": 4455.4,
        "label": "4455.40"
      },
      {
        "value": 4456.1,
        "label": "4456.10"
      },
      {
        "value": 4456.8,
        "label": "4456.80"
      },
      {
        "value": 4457.5,
        "label": "4457.50"
      },
      {
        "value": 4458.2,
        "label": "4458.20"
      },
      {
        "value": 4458.9,
        "label": "4458.90"
      },
      {
        "value": 4459.6,
        "label": "4459.60"
      },
      {
        "value": 4460.3,
        "label": "4460.30"
      },
      {
        "value": 4461,
        "label": "4461.00"
      },
      {
        "value": 4461.7,
        "label": "4461.70"
      },
      {
        "value": 4462.4,
        "label": "4462.40"
      },
      {
        "value": 4463.1,
        "label": "4463.10"
      },
      {
        "value": 4463.8,
        "label": "4463.80"
      },
      {
        "value": 4464.5,
        "label": "4464.50"
      }
    ]
  }
}
